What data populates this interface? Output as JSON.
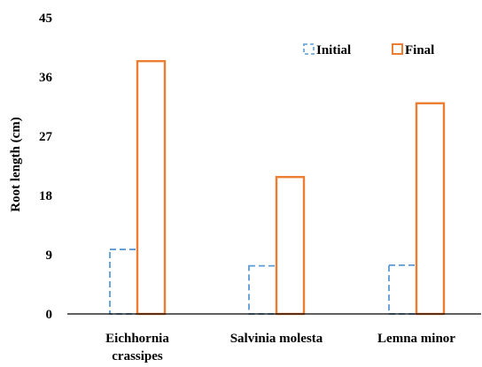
{
  "chart_data": {
    "type": "bar",
    "categories": [
      [
        "Eichhornia",
        "crassipes"
      ],
      [
        "Salvinia molesta"
      ],
      [
        "Lemna minor"
      ]
    ],
    "series": [
      {
        "name": "Initial",
        "values": [
          9.8,
          7.3,
          7.4
        ],
        "color": "#5B9BD5",
        "style": "dashed-outline"
      },
      {
        "name": "Final",
        "values": [
          38.4,
          20.8,
          32.0
        ],
        "color": "#ED7D31",
        "style": "solid-outline"
      }
    ],
    "title": "",
    "xlabel": "",
    "ylabel": "Root length (cm)",
    "ylim": [
      0,
      45
    ],
    "yticks": [
      "0",
      "9",
      "18",
      "27",
      "36",
      "45"
    ],
    "grid": false,
    "legend_position": "top-right"
  }
}
